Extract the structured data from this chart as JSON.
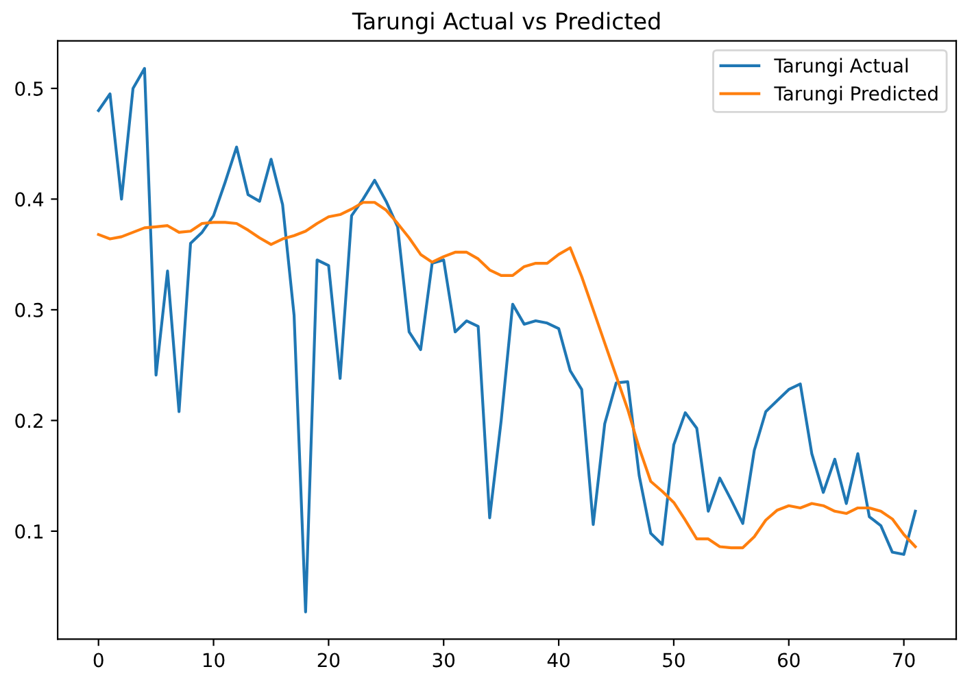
{
  "chart_data": {
    "type": "line",
    "title": "Tarungi Actual vs Predicted",
    "x": [
      0,
      1,
      2,
      3,
      4,
      5,
      6,
      7,
      8,
      9,
      10,
      11,
      12,
      13,
      14,
      15,
      16,
      17,
      18,
      19,
      20,
      21,
      22,
      23,
      24,
      25,
      26,
      27,
      28,
      29,
      30,
      31,
      32,
      33,
      34,
      35,
      36,
      37,
      38,
      39,
      40,
      41,
      42,
      43,
      44,
      45,
      46,
      47,
      48,
      49,
      50,
      51,
      52,
      53,
      54,
      55,
      56,
      57,
      58,
      59,
      60,
      61,
      62,
      63,
      64,
      65,
      66,
      67,
      68,
      69,
      70,
      71
    ],
    "series": [
      {
        "name": "Tarungi Actual",
        "color": "#1f77b4",
        "values": [
          0.48,
          0.495,
          0.4,
          0.5,
          0.518,
          0.241,
          0.335,
          0.208,
          0.36,
          0.37,
          0.385,
          0.415,
          0.447,
          0.404,
          0.398,
          0.436,
          0.395,
          0.295,
          0.027,
          0.345,
          0.34,
          0.238,
          0.385,
          0.4,
          0.417,
          0.398,
          0.375,
          0.28,
          0.264,
          0.342,
          0.345,
          0.28,
          0.29,
          0.285,
          0.112,
          0.2,
          0.305,
          0.287,
          0.29,
          0.288,
          0.283,
          0.245,
          0.228,
          0.106,
          0.197,
          0.234,
          0.235,
          0.15,
          0.098,
          0.088,
          0.178,
          0.207,
          0.193,
          0.118,
          0.148,
          0.128,
          0.107,
          0.173,
          0.208,
          0.218,
          0.228,
          0.233,
          0.17,
          0.135,
          0.165,
          0.125,
          0.17,
          0.113,
          0.105,
          0.081,
          0.079,
          0.118
        ]
      },
      {
        "name": "Tarungi Predicted",
        "color": "#ff7f0e",
        "values": [
          0.368,
          0.364,
          0.366,
          0.37,
          0.374,
          0.375,
          0.376,
          0.37,
          0.371,
          0.378,
          0.379,
          0.379,
          0.378,
          0.372,
          0.365,
          0.359,
          0.364,
          0.367,
          0.371,
          0.378,
          0.384,
          0.386,
          0.391,
          0.397,
          0.397,
          0.39,
          0.378,
          0.365,
          0.35,
          0.343,
          0.348,
          0.352,
          0.352,
          0.346,
          0.336,
          0.331,
          0.331,
          0.339,
          0.342,
          0.342,
          0.35,
          0.356,
          0.33,
          0.3,
          0.27,
          0.24,
          0.21,
          0.175,
          0.145,
          0.136,
          0.126,
          0.11,
          0.093,
          0.093,
          0.086,
          0.085,
          0.085,
          0.095,
          0.11,
          0.119,
          0.123,
          0.121,
          0.125,
          0.123,
          0.118,
          0.116,
          0.121,
          0.121,
          0.118,
          0.111,
          0.097,
          0.086
        ]
      }
    ],
    "xlim": [
      -3.55,
      74.55
    ],
    "ylim": [
      0.0024,
      0.543
    ],
    "xticks": [
      0,
      10,
      20,
      30,
      40,
      50,
      60,
      70
    ],
    "yticks": [
      0.1,
      0.2,
      0.3,
      0.4,
      0.5
    ],
    "legend": "top right",
    "grid": false
  }
}
